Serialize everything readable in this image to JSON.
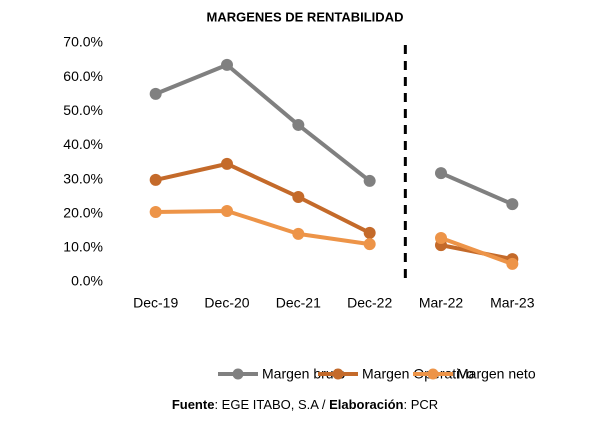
{
  "chart_data": {
    "type": "line",
    "title": "MARGENES DE RENTABILIDAD",
    "categories": [
      "Dec-19",
      "Dec-20",
      "Dec-21",
      "Dec-22",
      "Mar-22",
      "Mar-23"
    ],
    "series": [
      {
        "name": "Margen bruto",
        "color": "#808080",
        "values": [
          55.1,
          63.6,
          46.0,
          29.6,
          31.9,
          22.8
        ]
      },
      {
        "name": "Margen Operativo",
        "color": "#c46a2a",
        "values": [
          29.9,
          34.6,
          24.9,
          14.4,
          10.8,
          6.7
        ]
      },
      {
        "name": "Margen neto",
        "color": "#ed9448",
        "values": [
          20.5,
          20.8,
          14.1,
          11.1,
          12.9,
          5.3
        ]
      }
    ],
    "ylim": [
      0,
      70
    ],
    "yticks": [
      {
        "value": 0,
        "label": "0.0%"
      },
      {
        "value": 10,
        "label": "10.0%"
      },
      {
        "value": 20,
        "label": "20.0%"
      },
      {
        "value": 30,
        "label": "30.0%"
      },
      {
        "value": 40,
        "label": "40.0%"
      },
      {
        "value": 50,
        "label": "50.0%"
      },
      {
        "value": 60,
        "label": "60.0%"
      },
      {
        "value": 70,
        "label": "70.0%"
      }
    ],
    "grid": false,
    "legend": "bottom",
    "divider": {
      "after": 3,
      "style": "dashed",
      "color": "#000000"
    },
    "footer": [
      {
        "text": "Fuente",
        "bold": true
      },
      {
        "text": ": EGE ITABO, S.A / "
      },
      {
        "text": "Elaboración",
        "bold": true
      },
      {
        "text": ": PCR"
      }
    ]
  }
}
